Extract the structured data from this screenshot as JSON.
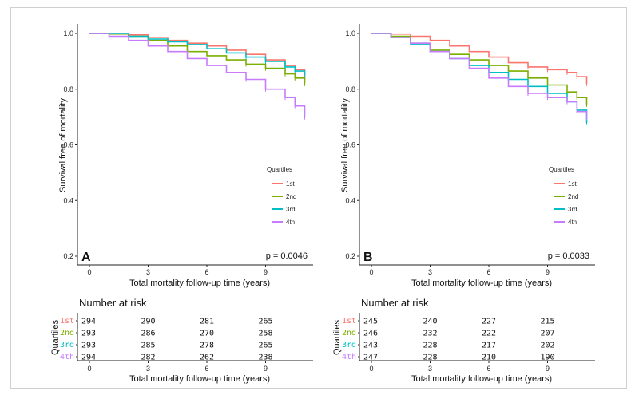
{
  "quartile_colors": {
    "1st": "#F8766D",
    "2nd": "#7CAE00",
    "3rd": "#00BFC4",
    "4th": "#C77CFF"
  },
  "chart_data": [
    {
      "type": "line",
      "panel": "A",
      "xlabel": "Total mortality follow-up time (years)",
      "ylabel": "Survival free of mortality",
      "xlim": [
        0,
        11
      ],
      "ylim": [
        0.2,
        1.0
      ],
      "x_ticks": [
        "0",
        "3",
        "6",
        "9"
      ],
      "y_ticks": [
        "0.2",
        "0.4",
        "0.6",
        "0.8",
        "1.0"
      ],
      "p_value": "p = 0.0046",
      "legend": {
        "title": "Quartiles",
        "position": "right",
        "entries": [
          "1st",
          "2nd",
          "3rd",
          "4th"
        ]
      },
      "series": [
        {
          "name": "1st",
          "x": [
            0,
            1,
            2,
            3,
            4,
            5,
            6,
            7,
            8,
            9,
            10,
            10.5,
            11
          ],
          "y": [
            1.0,
            1.0,
            0.995,
            0.985,
            0.975,
            0.965,
            0.955,
            0.94,
            0.925,
            0.905,
            0.885,
            0.87,
            0.835
          ]
        },
        {
          "name": "2nd",
          "x": [
            0,
            1,
            2,
            3,
            4,
            5,
            6,
            7,
            8,
            9,
            10,
            10.5,
            11
          ],
          "y": [
            1.0,
            0.998,
            0.99,
            0.975,
            0.955,
            0.935,
            0.92,
            0.905,
            0.89,
            0.875,
            0.855,
            0.84,
            0.82
          ]
        },
        {
          "name": "3rd",
          "x": [
            0,
            1,
            2,
            3,
            4,
            5,
            6,
            7,
            8,
            9,
            10,
            10.5,
            11
          ],
          "y": [
            1.0,
            1.0,
            0.99,
            0.98,
            0.97,
            0.96,
            0.945,
            0.93,
            0.915,
            0.9,
            0.88,
            0.865,
            0.85
          ]
        },
        {
          "name": "4th",
          "x": [
            0,
            1,
            2,
            3,
            4,
            5,
            6,
            7,
            8,
            9,
            10,
            10.5,
            11
          ],
          "y": [
            1.0,
            0.99,
            0.975,
            0.955,
            0.935,
            0.91,
            0.885,
            0.86,
            0.835,
            0.8,
            0.77,
            0.74,
            0.7
          ]
        }
      ],
      "number_at_risk": {
        "title": "Number at risk",
        "ylabel": "Quartiles",
        "xlabel": "Total mortality follow-up time (years)",
        "rows": [
          {
            "label": "1st",
            "values": [
              "294",
              "290",
              "281",
              "265"
            ]
          },
          {
            "label": "2nd",
            "values": [
              "293",
              "286",
              "270",
              "258"
            ]
          },
          {
            "label": "3rd",
            "values": [
              "293",
              "285",
              "278",
              "265"
            ]
          },
          {
            "label": "4th",
            "values": [
              "294",
              "282",
              "262",
              "238"
            ]
          }
        ]
      }
    },
    {
      "type": "line",
      "panel": "B",
      "xlabel": "Total mortality follow-up time (years)",
      "ylabel": "Survival free of mortality",
      "xlim": [
        0,
        11
      ],
      "ylim": [
        0.2,
        1.0
      ],
      "x_ticks": [
        "0",
        "3",
        "6",
        "9"
      ],
      "y_ticks": [
        "0.2",
        "0.4",
        "0.6",
        "0.8",
        "1.0"
      ],
      "p_value": "p = 0.0033",
      "legend": {
        "title": "Quartiles",
        "position": "right",
        "entries": [
          "1st",
          "2nd",
          "3rd",
          "4th"
        ]
      },
      "series": [
        {
          "name": "1st",
          "x": [
            0,
            1,
            2,
            3,
            4,
            5,
            6,
            7,
            8,
            9,
            10,
            10.5,
            11
          ],
          "y": [
            1.0,
            0.998,
            0.99,
            0.975,
            0.955,
            0.935,
            0.915,
            0.895,
            0.88,
            0.87,
            0.86,
            0.845,
            0.82
          ]
        },
        {
          "name": "2nd",
          "x": [
            0,
            1,
            2,
            3,
            4,
            5,
            6,
            7,
            8,
            9,
            10,
            10.5,
            11
          ],
          "y": [
            1.0,
            0.99,
            0.965,
            0.94,
            0.925,
            0.905,
            0.885,
            0.865,
            0.84,
            0.815,
            0.79,
            0.77,
            0.745
          ]
        },
        {
          "name": "3rd",
          "x": [
            0,
            1,
            2,
            3,
            4,
            5,
            6,
            7,
            8,
            9,
            10,
            10.5,
            11
          ],
          "y": [
            1.0,
            0.985,
            0.96,
            0.935,
            0.91,
            0.885,
            0.86,
            0.835,
            0.81,
            0.785,
            0.755,
            0.725,
            0.68
          ]
        },
        {
          "name": "4th",
          "x": [
            0,
            1,
            2,
            3,
            4,
            5,
            6,
            7,
            8,
            9,
            10,
            10.5,
            11
          ],
          "y": [
            1.0,
            0.985,
            0.965,
            0.935,
            0.91,
            0.875,
            0.84,
            0.81,
            0.785,
            0.77,
            0.755,
            0.72,
            0.695
          ]
        }
      ],
      "number_at_risk": {
        "title": "Number at risk",
        "ylabel": "Quartiles",
        "xlabel": "Total mortality follow-up time (years)",
        "rows": [
          {
            "label": "1st",
            "values": [
              "245",
              "240",
              "227",
              "215"
            ]
          },
          {
            "label": "2nd",
            "values": [
              "246",
              "232",
              "222",
              "207"
            ]
          },
          {
            "label": "3rd",
            "values": [
              "243",
              "228",
              "217",
              "202"
            ]
          },
          {
            "label": "4th",
            "values": [
              "247",
              "228",
              "210",
              "190"
            ]
          }
        ]
      }
    }
  ]
}
